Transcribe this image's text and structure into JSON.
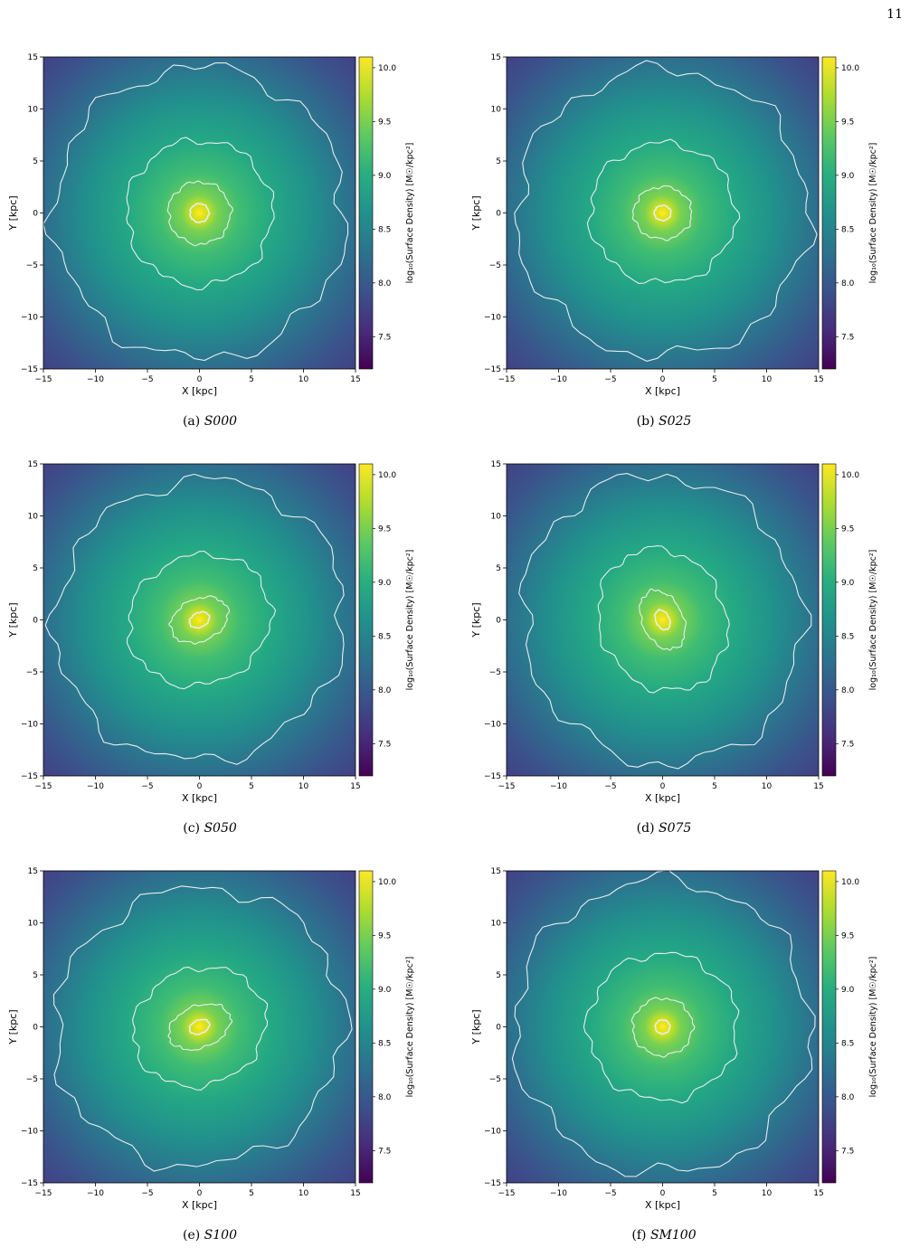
{
  "page_number": "11",
  "colors": {
    "contour": "#e8ecf0",
    "viridis_low": "#440154",
    "viridis_mid": "#21918c",
    "viridis_high": "#fde725"
  },
  "chart_data": [
    {
      "type": "heatmap",
      "id": "S000",
      "caption_label": "(a)",
      "caption_id": "S000",
      "xlabel": "X [kpc]",
      "ylabel": "Y [kpc]",
      "xlim": [
        -15,
        15
      ],
      "ylim": [
        -15,
        15
      ],
      "xticks": [
        "−15",
        "−10",
        "−5",
        "0",
        "5",
        "10",
        "15"
      ],
      "yticks": [
        "15",
        "10",
        "5",
        "0",
        "−5",
        "−10",
        "−15"
      ],
      "colorbar_label": "log₁₀(Surface Density) [M☉/kpc²]",
      "colorbar_range": [
        7.2,
        10.1
      ],
      "colorbar_ticks": [
        "10.0",
        "9.5",
        "9.0",
        "8.5",
        "8.0",
        "7.5"
      ],
      "contour_radii_kpc": [
        14.0,
        7.0,
        3.0,
        0.9
      ],
      "contour_ellipticity": 0.0,
      "contour_angle_deg": 0
    },
    {
      "type": "heatmap",
      "id": "S025",
      "caption_label": "(b)",
      "caption_id": "S025",
      "xlabel": "X [kpc]",
      "ylabel": "Y [kpc]",
      "xlim": [
        -15,
        15
      ],
      "ylim": [
        -15,
        15
      ],
      "xticks": [
        "−15",
        "−10",
        "−5",
        "0",
        "5",
        "10",
        "15"
      ],
      "yticks": [
        "15",
        "10",
        "5",
        "0",
        "−5",
        "−10",
        "−15"
      ],
      "colorbar_label": "log₁₀(Surface Density) [M☉/kpc²]",
      "colorbar_range": [
        7.2,
        10.1
      ],
      "colorbar_ticks": [
        "10.0",
        "9.5",
        "9.0",
        "8.5",
        "8.0",
        "7.5"
      ],
      "contour_radii_kpc": [
        14.0,
        7.0,
        2.8,
        0.8
      ],
      "contour_ellipticity": 0.1,
      "contour_angle_deg": 0
    },
    {
      "type": "heatmap",
      "id": "S050",
      "caption_label": "(c)",
      "caption_id": "S050",
      "xlabel": "X [kpc]",
      "ylabel": "Y [kpc]",
      "xlim": [
        -15,
        15
      ],
      "ylim": [
        -15,
        15
      ],
      "xticks": [
        "−15",
        "−10",
        "−5",
        "0",
        "5",
        "10",
        "15"
      ],
      "yticks": [
        "15",
        "10",
        "5",
        "0",
        "−5",
        "−10",
        "−15"
      ],
      "colorbar_label": "log₁₀(Surface Density) [M☉/kpc²]",
      "colorbar_range": [
        7.2,
        10.1
      ],
      "colorbar_ticks": [
        "10.0",
        "9.5",
        "9.0",
        "8.5",
        "8.0",
        "7.5"
      ],
      "contour_radii_kpc": [
        14.0,
        7.0,
        2.9,
        1.0
      ],
      "contour_ellipticity": 0.3,
      "contour_angle_deg": -25
    },
    {
      "type": "heatmap",
      "id": "S075",
      "caption_label": "(d)",
      "caption_id": "S075",
      "xlabel": "X [kpc]",
      "ylabel": "Y [kpc]",
      "xlim": [
        -15,
        15
      ],
      "ylim": [
        -15,
        15
      ],
      "xticks": [
        "−15",
        "−10",
        "−5",
        "0",
        "5",
        "10",
        "15"
      ],
      "yticks": [
        "15",
        "10",
        "5",
        "0",
        "−5",
        "−10",
        "−15"
      ],
      "colorbar_label": "log₁₀(Surface Density) [M☉/kpc²]",
      "colorbar_range": [
        7.2,
        10.1
      ],
      "colorbar_ticks": [
        "10.0",
        "9.5",
        "9.0",
        "8.5",
        "8.0",
        "7.5"
      ],
      "contour_radii_kpc": [
        14.0,
        7.0,
        3.0,
        1.0
      ],
      "contour_ellipticity": 0.35,
      "contour_angle_deg": 65
    },
    {
      "type": "heatmap",
      "id": "S100",
      "caption_label": "(e)",
      "caption_id": "S100",
      "xlabel": "X [kpc]",
      "ylabel": "Y [kpc]",
      "xlim": [
        -15,
        15
      ],
      "ylim": [
        -15,
        15
      ],
      "xticks": [
        "−15",
        "−10",
        "−5",
        "0",
        "5",
        "10",
        "15"
      ],
      "yticks": [
        "15",
        "10",
        "5",
        "0",
        "−5",
        "−10",
        "−15"
      ],
      "colorbar_label": "log₁₀(Surface Density) [M☉/kpc²]",
      "colorbar_range": [
        7.2,
        10.1
      ],
      "colorbar_ticks": [
        "10.0",
        "9.5",
        "9.0",
        "8.5",
        "8.0",
        "7.5"
      ],
      "contour_radii_kpc": [
        14.0,
        6.5,
        3.1,
        1.0
      ],
      "contour_ellipticity": 0.35,
      "contour_angle_deg": -22
    },
    {
      "type": "heatmap",
      "id": "SM100",
      "caption_label": "(f)",
      "caption_id": "SM100",
      "xlabel": "X [kpc]",
      "ylabel": "Y [kpc]",
      "xlim": [
        -15,
        15
      ],
      "ylim": [
        -15,
        15
      ],
      "xticks": [
        "−15",
        "−10",
        "−5",
        "0",
        "5",
        "10",
        "15"
      ],
      "yticks": [
        "15",
        "10",
        "5",
        "0",
        "−5",
        "−10",
        "−15"
      ],
      "colorbar_label": "log₁₀(Surface Density) [M☉/kpc²]",
      "colorbar_range": [
        7.2,
        10.1
      ],
      "colorbar_ticks": [
        "10.0",
        "9.5",
        "9.0",
        "8.5",
        "8.0",
        "7.5"
      ],
      "contour_radii_kpc": [
        14.2,
        7.2,
        2.9,
        0.7
      ],
      "contour_ellipticity": 0.05,
      "contour_angle_deg": 0
    }
  ]
}
